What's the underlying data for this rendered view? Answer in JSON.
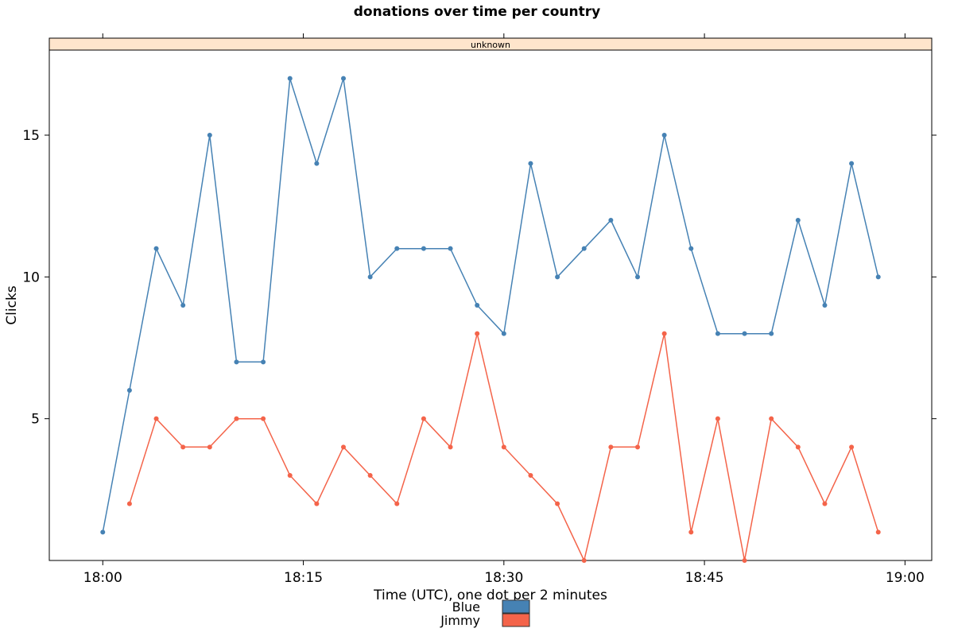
{
  "chart_data": {
    "type": "line",
    "title": "donations over time per country",
    "panel_strip": "unknown",
    "xlabel": "Time (UTC), one dot per 2 minutes",
    "ylabel": "Clicks",
    "x_unit": "minutes after 18:00 UTC",
    "xlim": [
      -4,
      62
    ],
    "ylim": [
      0,
      18
    ],
    "x_ticks": [
      {
        "value": 0,
        "label": "18:00"
      },
      {
        "value": 15,
        "label": "18:15"
      },
      {
        "value": 30,
        "label": "18:30"
      },
      {
        "value": 45,
        "label": "18:45"
      },
      {
        "value": 60,
        "label": "19:00"
      }
    ],
    "y_ticks": [
      {
        "value": 5,
        "label": "5"
      },
      {
        "value": 10,
        "label": "10"
      },
      {
        "value": 15,
        "label": "15"
      }
    ],
    "grid": false,
    "legend_position": "bottom",
    "strip_color": "#ffe5cc",
    "series": [
      {
        "name": "Blue",
        "color": "#4682b4",
        "x": [
          0,
          2,
          4,
          6,
          8,
          10,
          12,
          14,
          16,
          18,
          20,
          22,
          24,
          26,
          28,
          30,
          32,
          34,
          36,
          38,
          40,
          42,
          44,
          46,
          48,
          50,
          52,
          54,
          56,
          58
        ],
        "values": [
          1,
          6,
          11,
          9,
          15,
          7,
          7,
          17,
          14,
          17,
          10,
          11,
          11,
          11,
          9,
          8,
          14,
          10,
          11,
          12,
          10,
          15,
          11,
          8,
          8,
          8,
          12,
          9,
          14,
          10
        ]
      },
      {
        "name": "Jimmy",
        "color": "#f4644a",
        "x": [
          2,
          4,
          6,
          8,
          10,
          12,
          14,
          16,
          18,
          20,
          22,
          24,
          26,
          28,
          30,
          32,
          34,
          36,
          38,
          40,
          42,
          44,
          46,
          48,
          50,
          52,
          54,
          56,
          58
        ],
        "values": [
          2,
          5,
          4,
          4,
          5,
          5,
          3,
          2,
          4,
          3,
          2,
          5,
          4,
          8,
          4,
          3,
          2,
          0,
          4,
          4,
          8,
          1,
          5,
          0,
          5,
          4,
          2,
          4,
          1
        ]
      }
    ]
  }
}
